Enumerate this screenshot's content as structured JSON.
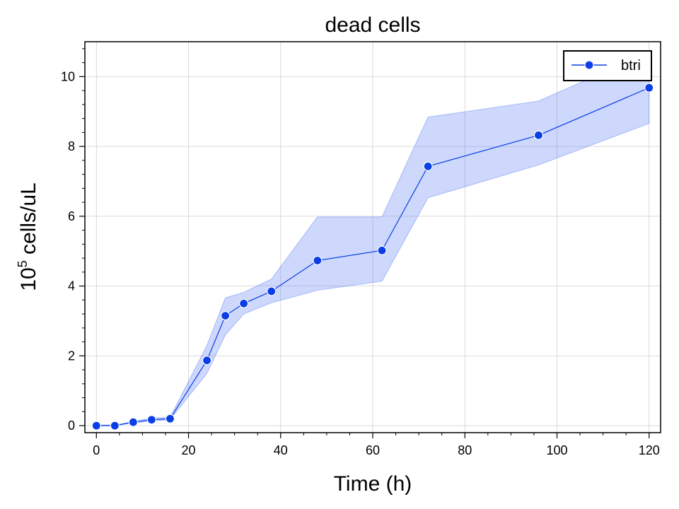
{
  "chart_data": {
    "type": "line",
    "title": "dead cells",
    "xlabel": "Time (h)",
    "ylabel_base": "10",
    "ylabel_exp": "5",
    "ylabel_rest": " cells/uL",
    "xlim": [
      -2.5,
      122.5
    ],
    "ylim": [
      -0.2,
      11.0
    ],
    "x_ticks": [
      0,
      20,
      40,
      60,
      80,
      100,
      120
    ],
    "y_ticks": [
      0,
      2,
      4,
      6,
      8,
      10
    ],
    "grid": true,
    "legend_position": "top-right",
    "colors": {
      "line": "#0a3ee6",
      "band": "#4d73f5",
      "grid": "#d0d0d0"
    },
    "series": [
      {
        "name": "btri",
        "x": [
          0,
          4,
          8,
          12,
          16,
          24,
          28,
          32,
          38,
          48,
          62,
          72,
          96,
          120
        ],
        "y": [
          0.0,
          0.0,
          0.1,
          0.17,
          0.2,
          1.87,
          3.15,
          3.5,
          3.85,
          4.73,
          5.02,
          7.43,
          8.32,
          9.68
        ],
        "y_lower": [
          0.0,
          0.0,
          0.08,
          0.13,
          0.17,
          1.5,
          2.6,
          3.2,
          3.52,
          3.88,
          4.14,
          6.53,
          7.47,
          8.66
        ],
        "y_upper": [
          0.02,
          0.02,
          0.12,
          0.22,
          0.24,
          2.3,
          3.66,
          3.82,
          4.2,
          5.98,
          5.98,
          8.84,
          9.3,
          10.7
        ]
      }
    ]
  }
}
